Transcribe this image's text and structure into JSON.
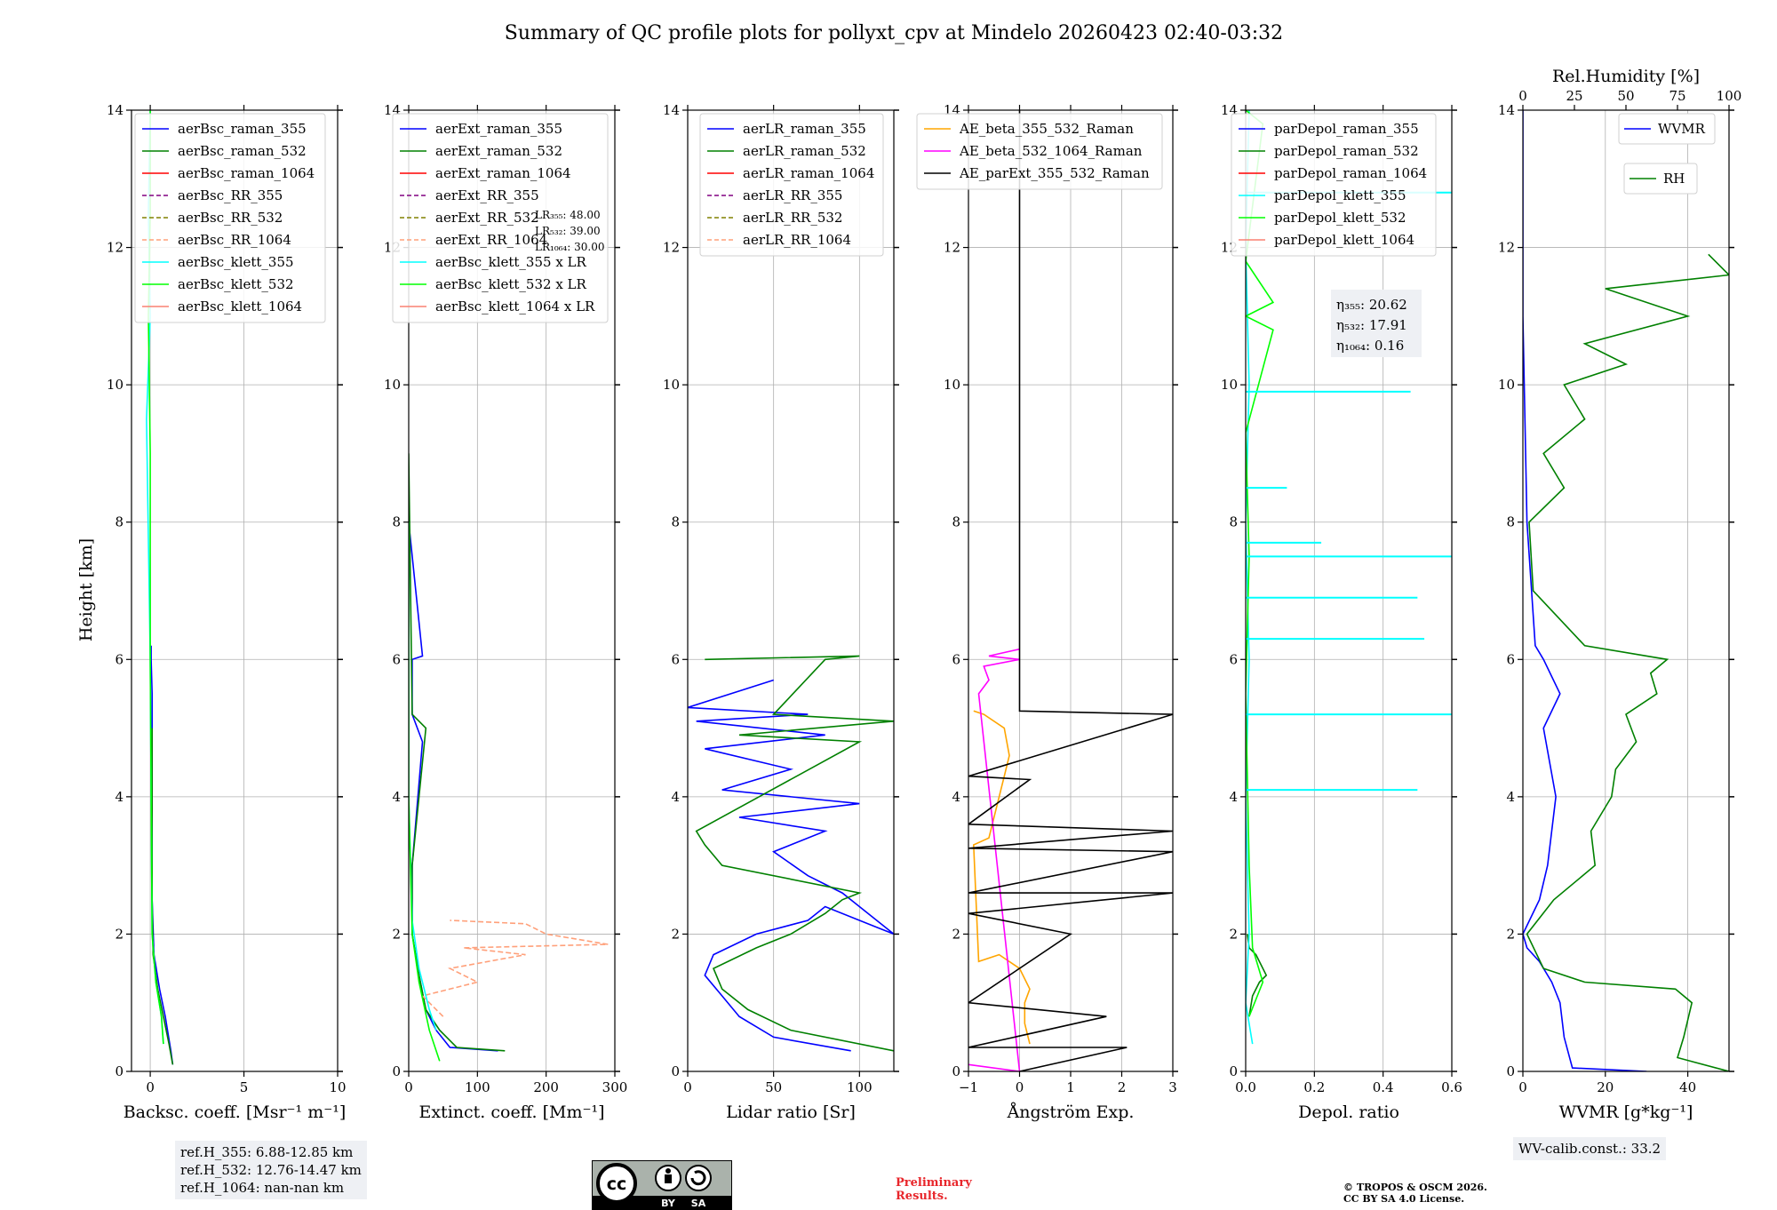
{
  "title": "Summary of QC profile plots for pollyxt_cpv at Mindelo 20260423 02:40-03:32",
  "y_label": "Height [km]",
  "chart_data": [
    {
      "type": "line",
      "xlabel": "Backsc. coeff. [Msr⁻¹ m⁻¹]",
      "xlim": [
        -1,
        10
      ],
      "xticks": [
        0,
        5,
        10
      ],
      "xtick_labels": [
        "0",
        "5",
        "10"
      ],
      "ylim": [
        0,
        14
      ],
      "yticks": [
        0,
        2,
        4,
        6,
        8,
        10,
        12,
        14
      ],
      "legend": [
        {
          "name": "aerBsc_raman_355",
          "color": "#0000ff",
          "dash": false
        },
        {
          "name": "aerBsc_raman_532",
          "color": "#008000",
          "dash": false
        },
        {
          "name": "aerBsc_raman_1064",
          "color": "#ff0000",
          "dash": false
        },
        {
          "name": "aerBsc_RR_355",
          "color": "#800080",
          "dash": true
        },
        {
          "name": "aerBsc_RR_532",
          "color": "#808000",
          "dash": true
        },
        {
          "name": "aerBsc_RR_1064",
          "color": "#ffa07a",
          "dash": true
        },
        {
          "name": "aerBsc_klett_355",
          "color": "#00ffff",
          "dash": false
        },
        {
          "name": "aerBsc_klett_532",
          "color": "#00ff00",
          "dash": false
        },
        {
          "name": "aerBsc_klett_1064",
          "color": "#fa8072",
          "dash": false
        }
      ],
      "series": [
        {
          "name": "aerBsc_raman_355",
          "color": "#0000ff",
          "x": [
            1.2,
            1.1,
            0.8,
            0.5,
            0.2,
            0.1,
            0.1,
            0.1,
            0.05,
            0.05
          ],
          "y": [
            0.1,
            0.3,
            0.8,
            1.2,
            1.7,
            2.5,
            4,
            5.5,
            6,
            6.2
          ]
        },
        {
          "name": "aerBsc_raman_532",
          "color": "#008000",
          "x": [
            1.2,
            1.0,
            0.7,
            0.4,
            0.15,
            0.1,
            0.1
          ],
          "y": [
            0.1,
            0.4,
            0.8,
            1.2,
            1.7,
            2.5,
            5
          ]
        },
        {
          "name": "aerBsc_klett_355",
          "color": "#00ffff",
          "x": [
            0.7,
            0.6,
            0.3,
            0.1,
            0.05,
            0.0,
            -0.2,
            0.0,
            -0.1,
            0.0
          ],
          "y": [
            0.4,
            0.8,
            1.3,
            2.0,
            4,
            6,
            9.5,
            11,
            12.5,
            14
          ]
        },
        {
          "name": "aerBsc_klett_532",
          "color": "#00ff00",
          "x": [
            0.7,
            0.6,
            0.3,
            0.1,
            0.05,
            0.0,
            0.0,
            -0.1,
            0.0,
            0.0
          ],
          "y": [
            0.4,
            0.8,
            1.3,
            2.0,
            4,
            6,
            9,
            11,
            12.5,
            14
          ]
        }
      ],
      "legend_pos": "top-left"
    },
    {
      "type": "line",
      "xlabel": "Extinct. coeff. [Mm⁻¹]",
      "xlim": [
        0,
        300
      ],
      "xticks": [
        0,
        100,
        200,
        300
      ],
      "xtick_labels": [
        "0",
        "100",
        "200",
        "300"
      ],
      "ylim": [
        0,
        14
      ],
      "yticks": [
        0,
        2,
        4,
        6,
        8,
        10,
        12,
        14
      ],
      "legend": [
        {
          "name": "aerExt_raman_355",
          "color": "#0000ff",
          "dash": false
        },
        {
          "name": "aerExt_raman_532",
          "color": "#008000",
          "dash": false
        },
        {
          "name": "aerExt_raman_1064",
          "color": "#ff0000",
          "dash": false
        },
        {
          "name": "aerExt_RR_355",
          "color": "#800080",
          "dash": true
        },
        {
          "name": "aerExt_RR_532",
          "color": "#808000",
          "dash": true
        },
        {
          "name": "aerExt_RR_1064",
          "color": "#ffa07a",
          "dash": true
        },
        {
          "name": "aerBsc_klett_355 x LR",
          "color": "#00ffff",
          "dash": false
        },
        {
          "name": "aerBsc_klett_532 x LR",
          "color": "#00ff00",
          "dash": false
        },
        {
          "name": "aerBsc_klett_1064 x LR",
          "color": "#fa8072",
          "dash": false
        }
      ],
      "hidden_annotation": [
        "LR₃₅₅: 48.00",
        "LR₅₃₂: 39.00",
        "LR₁₀₆₄: 30.00"
      ],
      "series": [
        {
          "name": "aerExt_raman_355",
          "color": "#0000ff",
          "x": [
            130,
            60,
            40,
            25,
            15,
            5,
            5,
            20,
            5,
            5,
            20,
            0
          ],
          "y": [
            0.3,
            0.35,
            0.6,
            0.9,
            1.4,
            2.0,
            3.0,
            4.8,
            5.2,
            6.0,
            6.05,
            8
          ]
        },
        {
          "name": "aerExt_raman_532",
          "color": "#008000",
          "x": [
            140,
            70,
            45,
            25,
            15,
            5,
            5,
            25,
            5,
            0
          ],
          "y": [
            0.3,
            0.35,
            0.6,
            0.9,
            1.4,
            2.0,
            3.0,
            5.0,
            5.2,
            9
          ]
        },
        {
          "name": "aerExt_RR_1064",
          "color": "#ffa07a",
          "dash": true,
          "x": [
            50,
            20,
            100,
            60,
            170,
            80,
            290,
            200,
            170,
            60
          ],
          "y": [
            0.8,
            1.1,
            1.3,
            1.5,
            1.7,
            1.8,
            1.85,
            2.0,
            2.15,
            2.2
          ]
        },
        {
          "name": "aerBsc_klett_355 x LR",
          "color": "#00ffff",
          "x": [
            40,
            30,
            15,
            5,
            0,
            0
          ],
          "y": [
            0.6,
            0.9,
            1.5,
            2.2,
            4,
            8
          ]
        },
        {
          "name": "aerBsc_klett_532 x LR",
          "color": "#00ff00",
          "x": [
            45,
            30,
            15,
            5,
            0,
            0
          ],
          "y": [
            0.15,
            0.6,
            1.3,
            2.0,
            4,
            8
          ]
        }
      ],
      "legend_pos": "top-left"
    },
    {
      "type": "line",
      "xlabel": "Lidar ratio [Sr]",
      "xlim": [
        0,
        120
      ],
      "xticks": [
        0,
        50,
        100
      ],
      "xtick_labels": [
        "0",
        "50",
        "100"
      ],
      "ylim": [
        0,
        14
      ],
      "yticks": [
        0,
        2,
        4,
        6,
        8,
        10,
        12,
        14
      ],
      "legend": [
        {
          "name": "aerLR_raman_355",
          "color": "#0000ff",
          "dash": false
        },
        {
          "name": "aerLR_raman_532",
          "color": "#008000",
          "dash": false
        },
        {
          "name": "aerLR_raman_1064",
          "color": "#ff0000",
          "dash": false
        },
        {
          "name": "aerLR_RR_355",
          "color": "#800080",
          "dash": true
        },
        {
          "name": "aerLR_RR_532",
          "color": "#808000",
          "dash": true
        },
        {
          "name": "aerLR_RR_1064",
          "color": "#ffa07a",
          "dash": true
        }
      ],
      "series": [
        {
          "name": "aerLR_raman_355",
          "color": "#0000ff",
          "x": [
            95,
            50,
            30,
            20,
            10,
            15,
            40,
            70,
            80,
            110,
            120,
            90,
            70,
            50,
            80,
            30,
            100,
            20,
            60,
            10,
            80,
            5,
            70,
            0,
            50
          ],
          "y": [
            0.3,
            0.5,
            0.8,
            1.1,
            1.4,
            1.7,
            2.0,
            2.2,
            2.4,
            2.1,
            2.0,
            2.6,
            2.85,
            3.2,
            3.5,
            3.7,
            3.9,
            4.1,
            4.4,
            4.7,
            4.9,
            5.1,
            5.2,
            5.3,
            5.7
          ]
        },
        {
          "name": "aerLR_raman_532",
          "color": "#008000",
          "x": [
            120,
            60,
            35,
            20,
            15,
            40,
            60,
            80,
            90,
            100,
            20,
            10,
            5,
            100,
            30,
            120,
            50,
            80,
            100,
            10
          ],
          "y": [
            0.3,
            0.6,
            0.9,
            1.2,
            1.5,
            1.8,
            2.0,
            2.3,
            2.5,
            2.6,
            3.0,
            3.3,
            3.5,
            4.8,
            4.9,
            5.1,
            5.2,
            6.0,
            6.05,
            6.0
          ]
        }
      ],
      "legend_pos": "top-right"
    },
    {
      "type": "line",
      "xlabel": "Ångström Exp.",
      "xlim": [
        -1,
        3
      ],
      "xticks": [
        -1,
        0,
        1,
        2,
        3
      ],
      "xtick_labels": [
        "−1",
        "0",
        "1",
        "2",
        "3"
      ],
      "ylim": [
        0,
        14
      ],
      "yticks": [
        0,
        2,
        4,
        6,
        8,
        10,
        12,
        14
      ],
      "legend": [
        {
          "name": "AE_beta_355_532_Raman",
          "color": "#ffa500",
          "dash": false
        },
        {
          "name": "AE_beta_532_1064_Raman",
          "color": "#ff00ff",
          "dash": false
        },
        {
          "name": "AE_parExt_355_532_Raman",
          "color": "#000000",
          "dash": false
        }
      ],
      "series": [
        {
          "name": "AE_beta_355_532_Raman",
          "color": "#ffa500",
          "x": [
            0.2,
            0.1,
            0.1,
            0.2,
            0.0,
            -0.4,
            -0.8,
            -0.9,
            -0.6,
            -0.3,
            -0.2,
            -0.3,
            -0.7,
            -0.9
          ],
          "y": [
            0.4,
            0.7,
            1.0,
            1.2,
            1.5,
            1.7,
            1.6,
            3.3,
            3.4,
            4.3,
            4.6,
            5.0,
            5.2,
            5.25
          ]
        },
        {
          "name": "AE_beta_532_1064_Raman",
          "color": "#ff00ff",
          "x": [
            -1,
            0.0,
            -0.8,
            -0.6,
            -0.7,
            0.0,
            -0.6,
            0.0
          ],
          "y": [
            0.1,
            0.0,
            5.5,
            5.7,
            5.9,
            6.0,
            6.05,
            6.15
          ]
        },
        {
          "name": "AE_parExt_355_532_Raman",
          "color": "#000000",
          "x": [
            0.0,
            2.1,
            -1,
            1.7,
            -1,
            1.0,
            -1,
            3.0,
            -1,
            3.0,
            -1,
            3.0,
            -1,
            0.2,
            -1,
            3.0,
            0.0,
            0.0
          ],
          "y": [
            0.0,
            0.35,
            0.35,
            0.8,
            1.0,
            2.0,
            2.3,
            2.6,
            2.6,
            3.2,
            3.25,
            3.5,
            3.6,
            4.25,
            4.3,
            5.2,
            5.25,
            14
          ]
        }
      ],
      "legend_pos": "top-center"
    },
    {
      "type": "line",
      "xlabel": "Depol. ratio",
      "xlim": [
        0,
        0.6
      ],
      "xticks": [
        0.0,
        0.2,
        0.4,
        0.6
      ],
      "xtick_labels": [
        "0.0",
        "0.2",
        "0.4",
        "0.6"
      ],
      "ylim": [
        0,
        14
      ],
      "yticks": [
        0,
        2,
        4,
        6,
        8,
        10,
        12,
        14
      ],
      "legend": [
        {
          "name": "parDepol_raman_355",
          "color": "#0000ff",
          "dash": false
        },
        {
          "name": "parDepol_raman_532",
          "color": "#008000",
          "dash": false
        },
        {
          "name": "parDepol_raman_1064",
          "color": "#ff0000",
          "dash": false
        },
        {
          "name": "parDepol_klett_355",
          "color": "#00ffff",
          "dash": false
        },
        {
          "name": "parDepol_klett_532",
          "color": "#00ff00",
          "dash": false
        },
        {
          "name": "parDepol_klett_1064",
          "color": "#fa8072",
          "dash": false
        }
      ],
      "annotation": [
        "η₃₅₅: 20.62",
        "η₅₃₂: 17.91",
        "η₁₀₆₄: 0.16"
      ],
      "spikes_klett_355": [
        {
          "x": 0.5,
          "y": 4.1
        },
        {
          "x": 0.6,
          "y": 5.2
        },
        {
          "x": 0.52,
          "y": 6.3
        },
        {
          "x": 0.5,
          "y": 6.9
        },
        {
          "x": 0.6,
          "y": 7.5
        },
        {
          "x": 0.22,
          "y": 7.7
        },
        {
          "x": 0.12,
          "y": 8.5
        },
        {
          "x": 0.48,
          "y": 9.9
        },
        {
          "x": 0.6,
          "y": 12.8
        }
      ],
      "series": [
        {
          "name": "parDepol_raman_532",
          "color": "#008000",
          "x": [
            0.01,
            0.02,
            0.04,
            0.06,
            0.03,
            0.01,
            0.005
          ],
          "y": [
            0.8,
            1.1,
            1.3,
            1.4,
            1.7,
            1.8,
            2.0
          ]
        },
        {
          "name": "parDepol_klett_355",
          "color": "#00ffff",
          "x": [
            0.02,
            0.0,
            0.01,
            0.0,
            0.01,
            0.0,
            0.01,
            0.0,
            0.01
          ],
          "y": [
            0.4,
            1.0,
            2.0,
            4.0,
            6.0,
            8.0,
            10.0,
            12.0,
            14
          ]
        },
        {
          "name": "parDepol_klett_532",
          "color": "#00ff00",
          "x": [
            0.01,
            0.05,
            0.02,
            0.01,
            0.0,
            0.01,
            0.0,
            0.08,
            0.0,
            0.08,
            0.0,
            0.05,
            0.0
          ],
          "y": [
            0.8,
            1.3,
            1.8,
            3.0,
            5.5,
            7.5,
            9.3,
            10.8,
            11.0,
            11.2,
            11.8,
            13.8,
            14
          ]
        }
      ],
      "legend_pos": "top-left"
    },
    {
      "type": "line",
      "xlabel": "WVMR [g*kg⁻¹]",
      "xlim": [
        0,
        50
      ],
      "xticks": [
        0,
        20,
        40
      ],
      "xtick_labels": [
        "0",
        "20",
        "40"
      ],
      "ylim": [
        0,
        14
      ],
      "yticks": [
        0,
        2,
        4,
        6,
        8,
        10,
        12,
        14
      ],
      "top_axis": {
        "label": "Rel.Humidity [%]",
        "xlim": [
          0,
          100
        ],
        "xticks": [
          0,
          25,
          50,
          75,
          100
        ],
        "xtick_labels": [
          "0",
          "25",
          "50",
          "75",
          "100"
        ]
      },
      "legend": [
        {
          "name": "WVMR",
          "color": "#0000ff",
          "dash": false
        },
        {
          "name": "RH",
          "color": "#008000",
          "dash": false
        }
      ],
      "annotation": "WV-calib.const.: 33.2",
      "series": [
        {
          "name": "WVMR",
          "color": "#0000ff",
          "x": [
            30,
            12,
            10,
            9,
            7,
            4,
            1,
            0,
            4,
            6,
            8,
            5,
            9,
            5,
            3,
            1,
            0,
            0
          ],
          "y": [
            0.0,
            0.05,
            0.5,
            1.0,
            1.3,
            1.6,
            1.8,
            2.0,
            2.5,
            3.0,
            4.0,
            5.0,
            5.5,
            6.0,
            6.2,
            8,
            11,
            14
          ]
        },
        {
          "name": "RH",
          "color": "#008000",
          "axis": "top",
          "x": [
            100,
            75,
            78,
            82,
            74,
            30,
            10,
            2,
            15,
            35,
            33,
            43,
            45,
            55,
            50,
            65,
            62,
            70,
            30,
            5,
            3,
            20,
            10,
            30,
            20,
            50,
            30,
            80,
            40,
            100,
            90
          ],
          "y": [
            0.0,
            0.2,
            0.5,
            1.0,
            1.2,
            1.3,
            1.5,
            2.0,
            2.5,
            3.0,
            3.5,
            4.0,
            4.4,
            4.8,
            5.2,
            5.5,
            5.8,
            6.0,
            6.2,
            7.0,
            8.0,
            8.5,
            9.0,
            9.5,
            10.0,
            10.3,
            10.6,
            11.0,
            11.4,
            11.6,
            11.9
          ]
        }
      ],
      "legend_pos": "top-right"
    }
  ],
  "boxes": {
    "ref_h": [
      "ref.H_355: 6.88-12.85 km",
      "ref.H_532: 12.76-14.47 km",
      "ref.H_1064: nan-nan km"
    ],
    "wv_calib": "WV-calib.const.: 33.2"
  },
  "footer": {
    "cc_license": {
      "left": "cc",
      "by": "BY",
      "sa": "SA"
    },
    "preliminary": [
      "Preliminary",
      "Results."
    ],
    "copyright": [
      "© TROPOS & OSCM 2026.",
      "CC BY SA 4.0 License."
    ]
  }
}
